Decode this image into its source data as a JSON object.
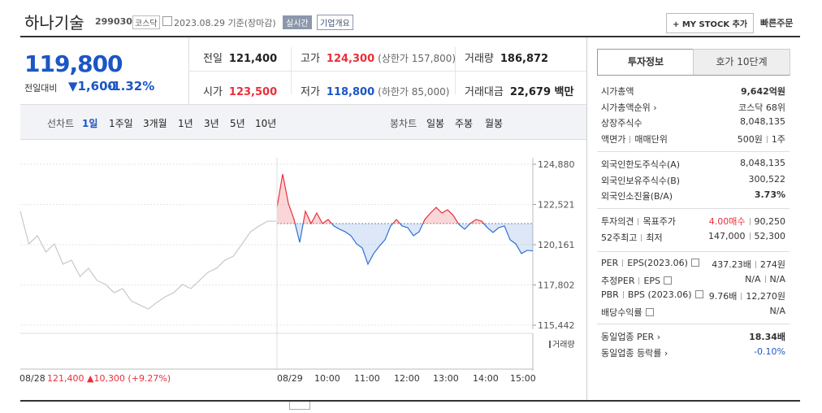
{
  "header": {
    "name": "하나기술",
    "code": "299030",
    "market": "코스닥",
    "date": "2023.08.29 기준(장마감)",
    "realtime": "실시간",
    "overview": "기업개요",
    "mystock": "+ MY STOCK 추가",
    "quick_order": "빠른주문"
  },
  "price": {
    "current": "119,800",
    "change_label": "전일대비",
    "change": "▼1,600",
    "change_rate": "-1.32%"
  },
  "summary": [
    [
      {
        "label": "전일",
        "value": "121,400"
      },
      {
        "label": "고가",
        "value": "124,300",
        "note": "(상한가 157,800)"
      },
      {
        "label": "거래량",
        "value": "186,872"
      }
    ],
    [
      {
        "label": "시가",
        "value": "123,500"
      },
      {
        "label": "저가",
        "value": "118,800",
        "note": "(하한가 85,000)"
      },
      {
        "label": "거래대금",
        "value": "22,679 백만"
      }
    ]
  ],
  "tabs": {
    "line_label": "선차트",
    "line": [
      "1일",
      "1주일",
      "3개월",
      "1년",
      "3년",
      "5년",
      "10년"
    ],
    "candle_label": "봉차트",
    "candle": [
      "일봉",
      "주봉",
      "월봉"
    ]
  },
  "chart_data": {
    "type": "line",
    "ylim": [
      115442,
      124880
    ],
    "yticks": [
      {
        "value": 124880,
        "label": "124,880"
      },
      {
        "value": 122521,
        "label": "122,521"
      },
      {
        "value": 120161,
        "label": "120,161"
      },
      {
        "value": 117802,
        "label": "117,802"
      },
      {
        "value": 115442,
        "label": "115,442"
      }
    ],
    "grid": true,
    "reference": 121400,
    "volume_label": "거래량",
    "x_labels": [
      "08/28",
      "08/29",
      "10:00",
      "11:00",
      "12:00",
      "13:00",
      "14:00",
      "15:00"
    ],
    "prev_day_summary": "121,400 ▲10,300 (+9.27%)",
    "series": [
      {
        "name": "08/29",
        "color": "#2f6fd1",
        "up_color": "#e8303a",
        "values": [
          122350,
          124300,
          122590,
          121640,
          120300,
          122120,
          121400,
          122020,
          121400,
          121640,
          121260,
          121070,
          120920,
          120690,
          120210,
          119970,
          119020,
          119640,
          120070,
          120450,
          121260,
          121640,
          121260,
          121160,
          120690,
          120920,
          121640,
          122020,
          122350,
          122020,
          122210,
          121880,
          121350,
          121070,
          121400,
          121640,
          121540,
          121160,
          120880,
          121160,
          121260,
          120450,
          120210,
          119640,
          119830,
          119800
        ]
      },
      {
        "name": "08/28",
        "color": "#c8c8c8",
        "values": [
          122120,
          120210,
          120690,
          119730,
          120210,
          119020,
          119260,
          118300,
          118780,
          118060,
          117830,
          117350,
          117590,
          116870,
          116630,
          116390,
          116770,
          117110,
          117350,
          117830,
          117590,
          118060,
          118540,
          118780,
          119260,
          119490,
          120210,
          120920,
          121260,
          121540,
          121540
        ]
      }
    ]
  },
  "side": {
    "tabs": [
      "투자정보",
      "호가 10단계"
    ],
    "sections": [
      [
        {
          "label": [
            "시가총액"
          ],
          "value": [
            "9,642억원"
          ]
        },
        {
          "label": [
            "시가총액순위 ›"
          ],
          "value": [
            "코스닥 68위"
          ]
        },
        {
          "label": [
            "상장주식수"
          ],
          "value": [
            "8,048,135"
          ]
        },
        {
          "label": [
            "액면가",
            "매매단위"
          ],
          "value": [
            "500원",
            "1주"
          ]
        }
      ],
      [
        {
          "label": [
            "외국인한도주식수(A)"
          ],
          "value": [
            "8,048,135"
          ]
        },
        {
          "label": [
            "외국인보유주식수(B)"
          ],
          "value": [
            "300,522"
          ]
        },
        {
          "label": [
            "외국인소진율(B/A)"
          ],
          "value": [
            "3.73%"
          ]
        }
      ],
      [
        {
          "label": [
            "투자의견",
            "목표주가"
          ],
          "value": [
            "4.00매수",
            "90,250"
          ]
        },
        {
          "label": [
            "52주최고",
            "최저"
          ],
          "value": [
            "147,000",
            "52,300"
          ]
        }
      ],
      [
        {
          "label": [
            "PER",
            "EPS(2023.06)"
          ],
          "value": [
            "437.23배",
            "274원"
          ],
          "help": true
        },
        {
          "label": [
            "추정PER",
            "EPS"
          ],
          "value": [
            "N/A",
            "N/A"
          ],
          "help": true
        },
        {
          "label": [
            "PBR",
            "BPS (2023.06)"
          ],
          "value": [
            "9.76배",
            "12,270원"
          ],
          "help": true
        },
        {
          "label": [
            "배당수익률"
          ],
          "value": [
            "N/A"
          ],
          "help": true
        }
      ],
      [
        {
          "label": [
            "동일업종 PER ›"
          ],
          "value": [
            "18.34배"
          ]
        },
        {
          "label": [
            "동일업종 등락률 ›"
          ],
          "value": [
            "-0.10%"
          ]
        }
      ]
    ]
  }
}
